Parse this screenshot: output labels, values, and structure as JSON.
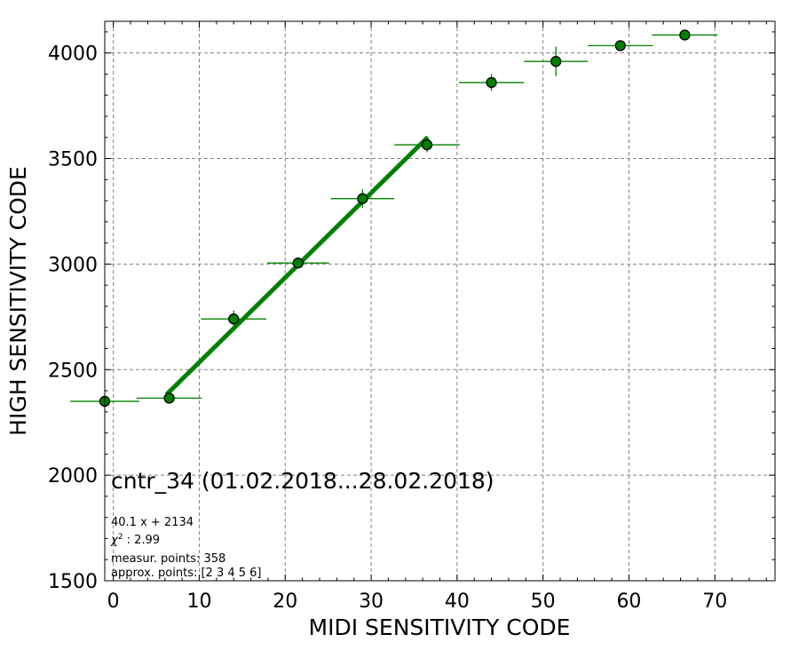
{
  "chart_data": {
    "type": "scatter",
    "title": "",
    "xlabel": "MIDI SENSITIVITY CODE",
    "ylabel": "HIGH SENSITIVITY CODE",
    "xlim": [
      -1,
      77
    ],
    "ylim": [
      1500,
      4150
    ],
    "x_ticks": [
      0,
      10,
      20,
      30,
      40,
      50,
      60,
      70
    ],
    "y_ticks": [
      1500,
      2000,
      2500,
      3000,
      3500,
      4000
    ],
    "grid": true,
    "colors": {
      "marker": "#008000",
      "marker_edge": "#000000",
      "fit": "#008000",
      "grid": "#808080"
    },
    "points": [
      {
        "x": -1.0,
        "y": 2350,
        "xerr": 4.0,
        "yerr": 10
      },
      {
        "x": 6.5,
        "y": 2365,
        "xerr": 3.8,
        "yerr": 25
      },
      {
        "x": 14.0,
        "y": 2740,
        "xerr": 3.8,
        "yerr": 40
      },
      {
        "x": 21.5,
        "y": 3005,
        "xerr": 3.6,
        "yerr": 25
      },
      {
        "x": 29.0,
        "y": 3310,
        "xerr": 3.7,
        "yerr": 45
      },
      {
        "x": 36.5,
        "y": 3565,
        "xerr": 3.8,
        "yerr": 35
      },
      {
        "x": 44.0,
        "y": 3860,
        "xerr": 3.8,
        "yerr": 40
      },
      {
        "x": 51.5,
        "y": 3960,
        "xerr": 3.7,
        "yerr": 70
      },
      {
        "x": 59.0,
        "y": 4035,
        "xerr": 3.8,
        "yerr": 10
      },
      {
        "x": 66.5,
        "y": 4085,
        "xerr": 3.8,
        "yerr": 10
      }
    ],
    "fit": {
      "slope": 40.1,
      "intercept": 2134,
      "x_range": [
        6.2,
        36.6
      ]
    },
    "annotations": {
      "period": "cntr_34 (01.02.2018...28.02.2018)",
      "fit_equation": "40.1 x + 2134",
      "chi2_prefix": "χ",
      "chi2_sup": "2",
      "chi2_value": " : 2.99",
      "measured_points": "measur. points: 358",
      "approx_points": "approx. points: [2 3 4 5 6]"
    }
  }
}
